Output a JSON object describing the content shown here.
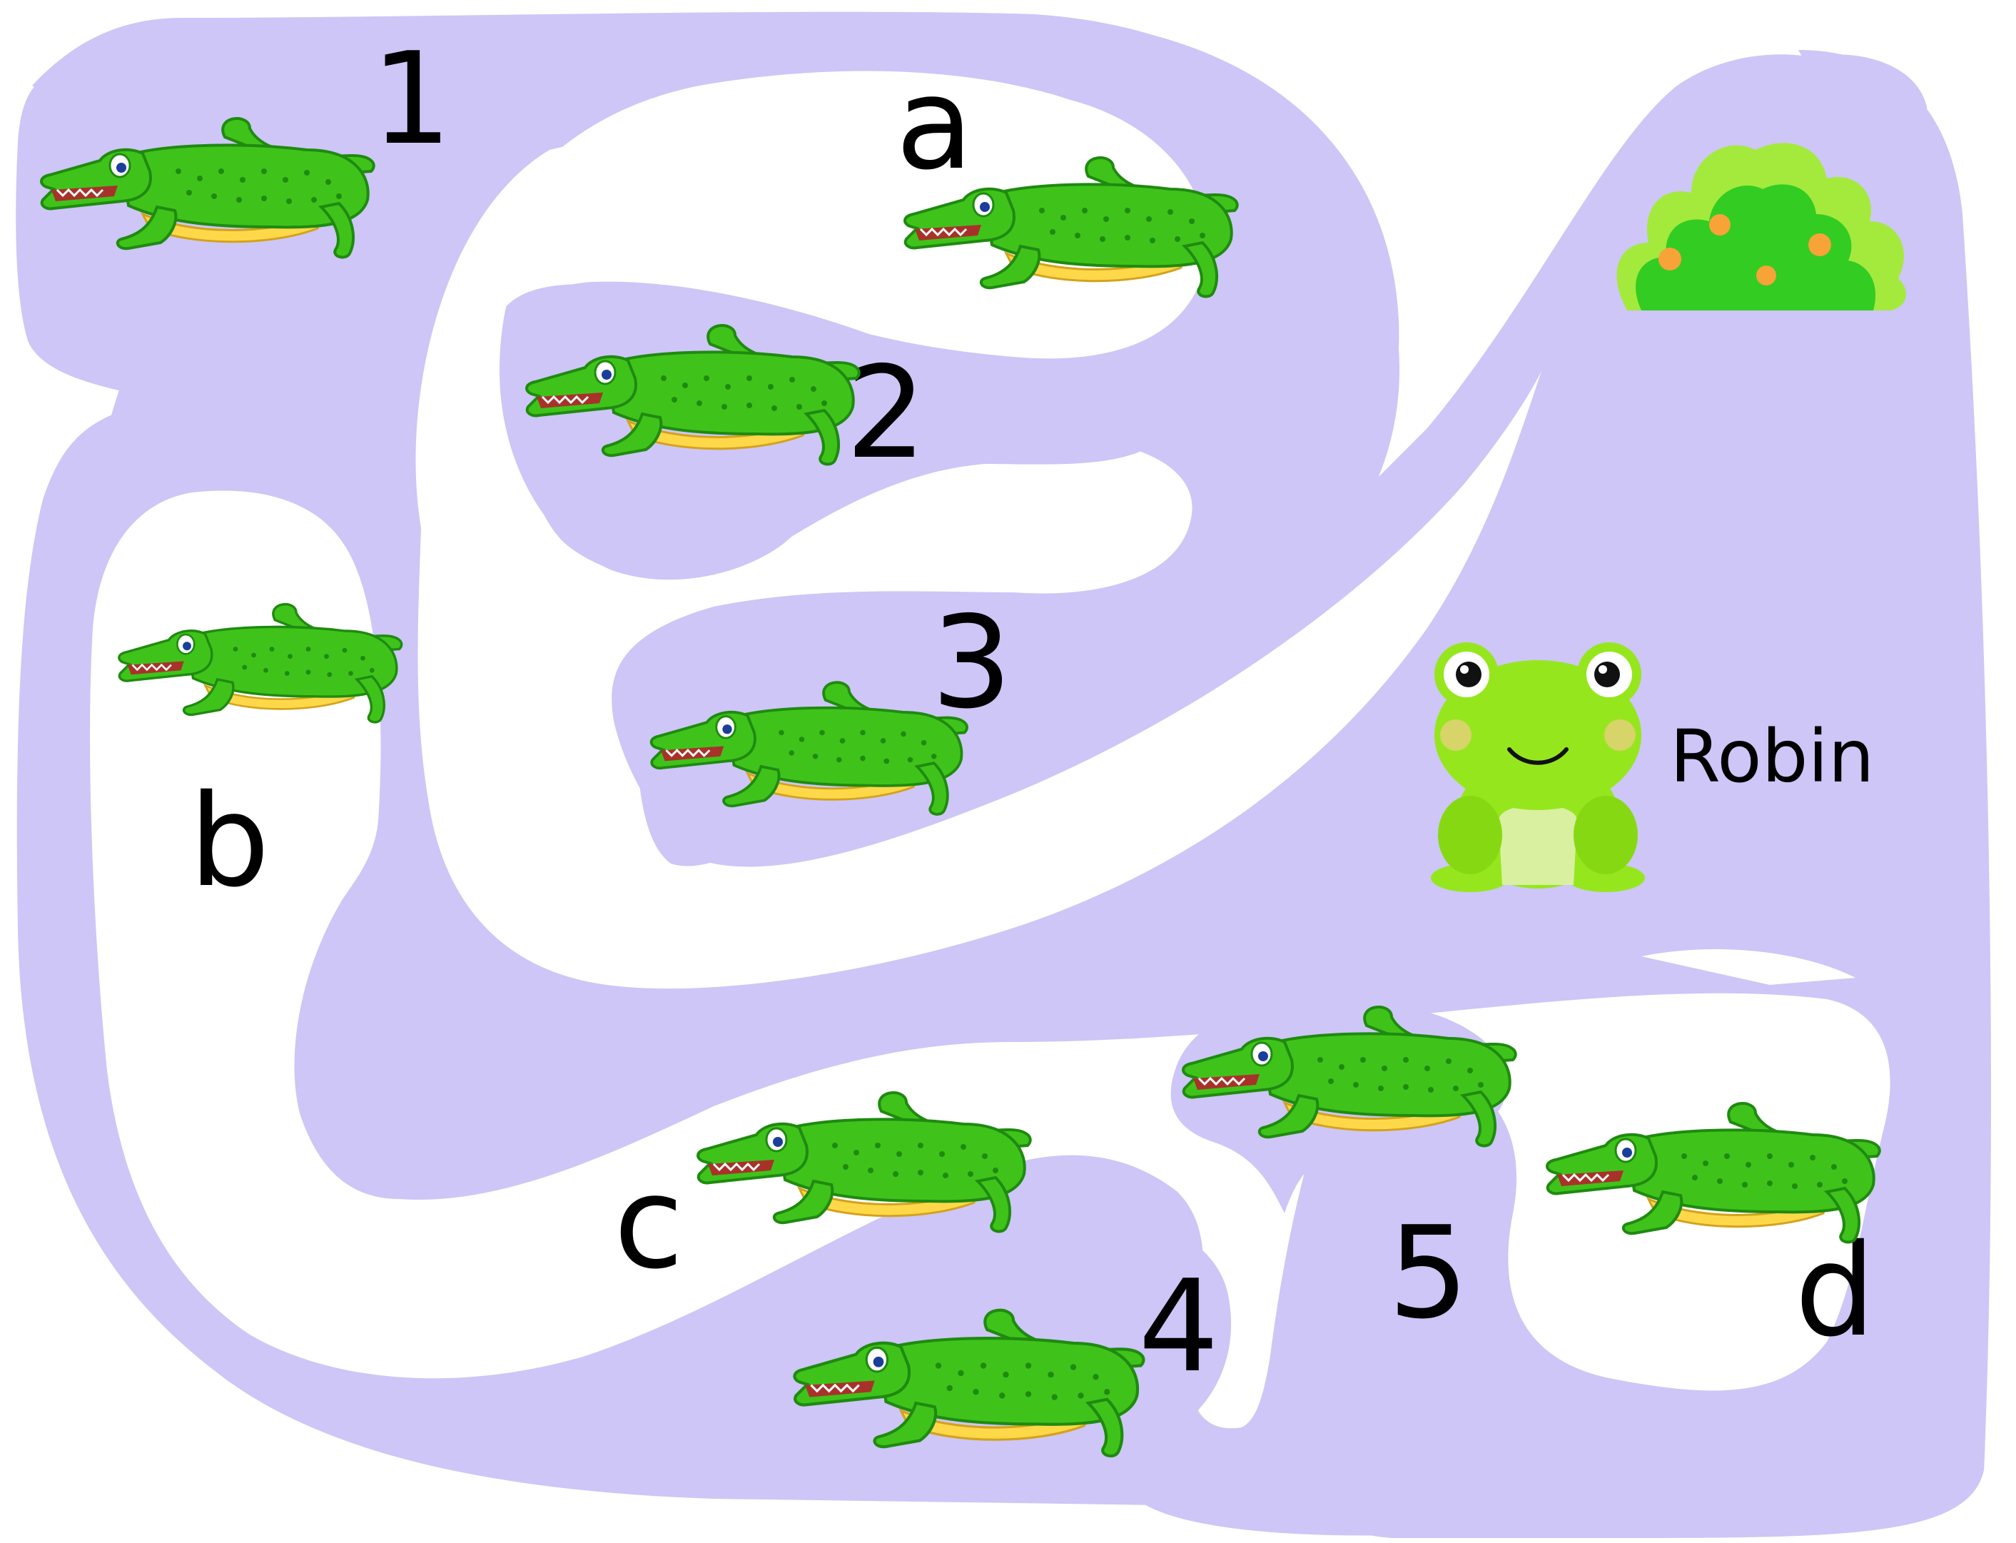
{
  "colors": {
    "water": "#cdc6f7",
    "land": "#ffffff",
    "crocodile": "#3fc31a",
    "crocodile_dark": "#1f8a10",
    "frog": "#96e61d",
    "bush": "#33cc22",
    "berry": "#f7a338"
  },
  "labels": {
    "numbers": [
      "1",
      "2",
      "3",
      "4",
      "5"
    ],
    "letters": [
      "a",
      "b",
      "c",
      "d"
    ],
    "frog_name": "Robin"
  },
  "icons": {
    "crocodile": "crocodile-icon",
    "frog": "frog-icon",
    "bush": "bush-icon"
  }
}
